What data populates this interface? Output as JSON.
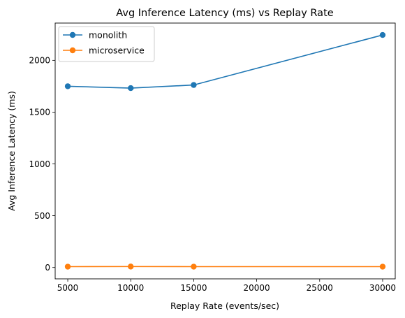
{
  "chart_data": {
    "type": "line",
    "title": "Avg Inference Latency (ms) vs Replay Rate",
    "xlabel": "Replay Rate (events/sec)",
    "ylabel": "Avg Inference Latency (ms)",
    "x": [
      5000,
      10000,
      15000,
      30000
    ],
    "xlim": [
      4000,
      31000
    ],
    "ylim": [
      -110,
      2360
    ],
    "xticks": [
      5000,
      10000,
      15000,
      20000,
      25000,
      30000
    ],
    "yticks": [
      0,
      500,
      1000,
      1500,
      2000
    ],
    "grid": false,
    "legend_position": "top-left",
    "series": [
      {
        "name": "monolith",
        "color": "#1f77b4",
        "values": [
          1750,
          1732,
          1762,
          2245
        ]
      },
      {
        "name": "microservice",
        "color": "#ff7f0e",
        "values": [
          8,
          9,
          8,
          8
        ]
      }
    ]
  }
}
